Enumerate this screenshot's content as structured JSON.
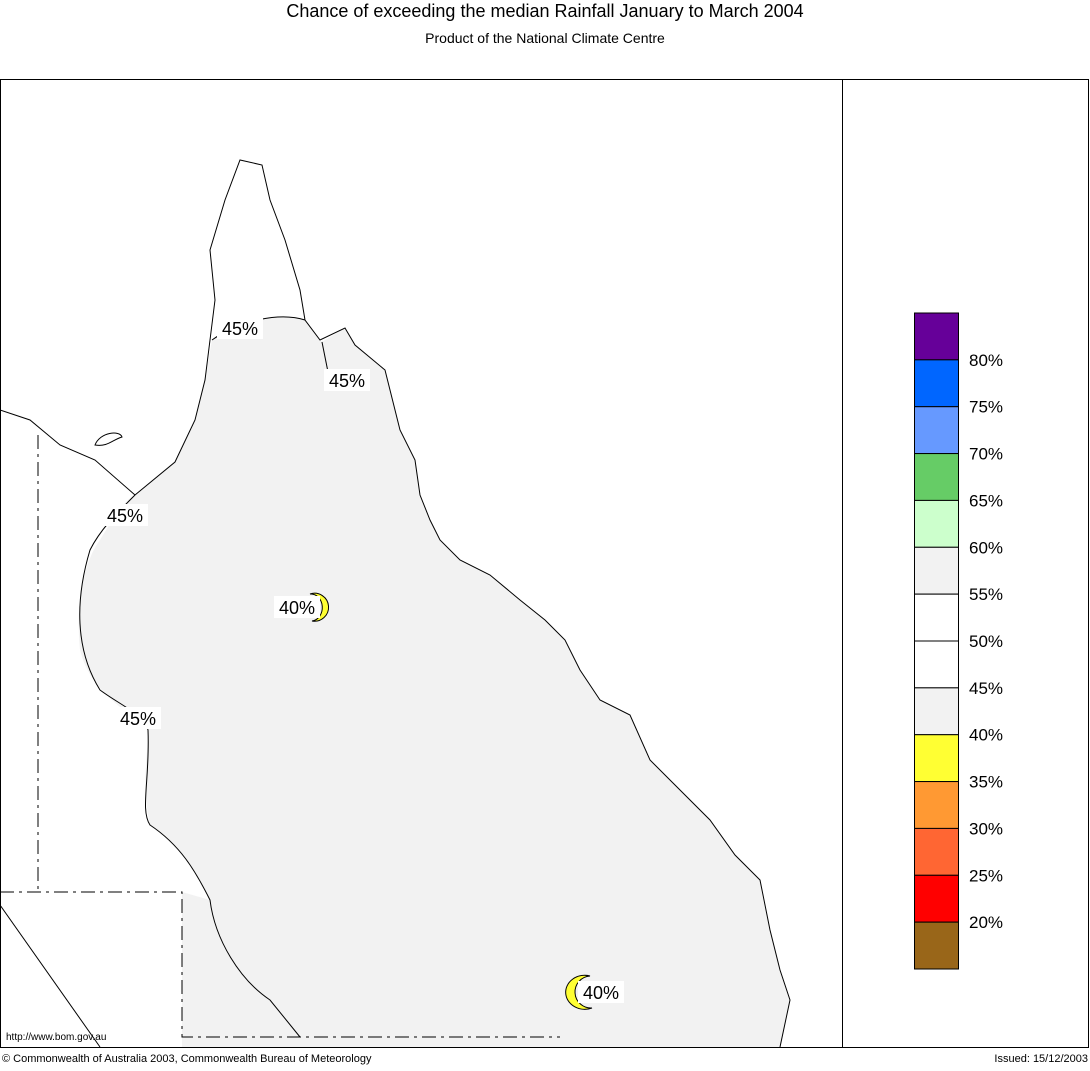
{
  "title": "Chance of exceeding the median Rainfall January to March 2004",
  "subtitle": "Product of the National Climate Centre",
  "url": "http://www.bom.gov.au",
  "copyright": "© Commonwealth of Australia 2003, Commonwealth Bureau of Meteorology",
  "issued": "Issued: 15/12/2003",
  "contour_labels": [
    "45%",
    "45%",
    "45%",
    "45%",
    "40%",
    "40%"
  ],
  "legend": {
    "colors": [
      "#660099",
      "#0066ff",
      "#6699ff",
      "#66cc66",
      "#ccffcc",
      "#f2f2f2",
      "#ffffff",
      "#ffffff",
      "#f2f2f2",
      "#ffff33",
      "#ff9933",
      "#ff6633",
      "#ff0000",
      "#996619"
    ],
    "labels": [
      "80%",
      "75%",
      "70%",
      "65%",
      "60%",
      "55%",
      "50%",
      "45%",
      "40%",
      "35%",
      "30%",
      "25%",
      "20%"
    ]
  }
}
